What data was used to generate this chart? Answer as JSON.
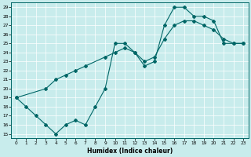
{
  "xlabel": "Humidex (Indice chaleur)",
  "bg_color": "#c8ecec",
  "line_color": "#006666",
  "xlim": [
    -0.5,
    23.5
  ],
  "ylim": [
    14.5,
    29.5
  ],
  "xticks": [
    0,
    1,
    2,
    3,
    4,
    5,
    6,
    7,
    8,
    9,
    10,
    11,
    12,
    13,
    14,
    15,
    16,
    17,
    18,
    19,
    20,
    21,
    22,
    23
  ],
  "yticks": [
    15,
    16,
    17,
    18,
    19,
    20,
    21,
    22,
    23,
    24,
    25,
    26,
    27,
    28,
    29
  ],
  "line1_x": [
    0,
    1,
    2,
    3,
    4,
    5,
    6,
    7,
    8,
    9,
    10,
    11,
    12,
    13,
    14,
    15,
    16,
    17,
    18,
    19,
    20,
    21,
    22,
    23
  ],
  "line1_y": [
    19,
    18,
    17,
    16,
    15,
    16,
    16.5,
    16,
    18,
    20,
    25,
    25,
    24,
    22.5,
    23,
    27,
    29,
    29,
    28,
    28,
    27.5,
    25,
    25,
    25
  ],
  "line2_x": [
    0,
    3,
    4,
    5,
    6,
    7,
    9,
    10,
    11,
    12,
    13,
    14,
    15,
    16,
    17,
    18,
    19,
    20,
    21,
    22,
    23
  ],
  "line2_y": [
    19,
    20,
    21,
    21.5,
    22,
    22.5,
    23.5,
    24,
    24.5,
    24,
    23,
    23.5,
    25.5,
    27,
    27.5,
    27.5,
    27,
    26.5,
    25.5,
    25,
    25
  ]
}
